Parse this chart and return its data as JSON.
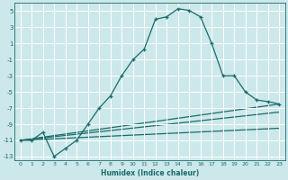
{
  "xlabel": "Humidex (Indice chaleur)",
  "bg_color": "#cce8ea",
  "grid_color": "#ffffff",
  "line_color": "#1a6b6b",
  "xlim": [
    -0.5,
    23.5
  ],
  "ylim": [
    -13.5,
    6.0
  ],
  "yticks": [
    -13,
    -11,
    -9,
    -7,
    -5,
    -3,
    -1,
    1,
    3,
    5
  ],
  "xticks": [
    0,
    1,
    2,
    3,
    4,
    5,
    6,
    7,
    8,
    9,
    10,
    11,
    12,
    13,
    14,
    15,
    16,
    17,
    18,
    19,
    20,
    21,
    22,
    23
  ],
  "curve_x": [
    0,
    1,
    2,
    3,
    4,
    5,
    6,
    7,
    8,
    9,
    10,
    11,
    12,
    13,
    14,
    15,
    16,
    17,
    18,
    19,
    20,
    21,
    22,
    23
  ],
  "curve_y": [
    -11,
    -11,
    -10,
    -13,
    -12,
    -11,
    -9,
    -7,
    -5.5,
    -3,
    -1,
    0.3,
    4.0,
    4.3,
    5.3,
    5.1,
    4.3,
    1.0,
    -3.0,
    -3.0,
    -5.0,
    -6,
    -6.2,
    -6.5
  ],
  "line2_x": [
    0,
    23
  ],
  "line2_y": [
    -11,
    -6.5
  ],
  "line3_x": [
    0,
    23
  ],
  "line3_y": [
    -11,
    -7.5
  ],
  "line4_x": [
    0,
    23
  ],
  "line4_y": [
    -11,
    -9.5
  ]
}
